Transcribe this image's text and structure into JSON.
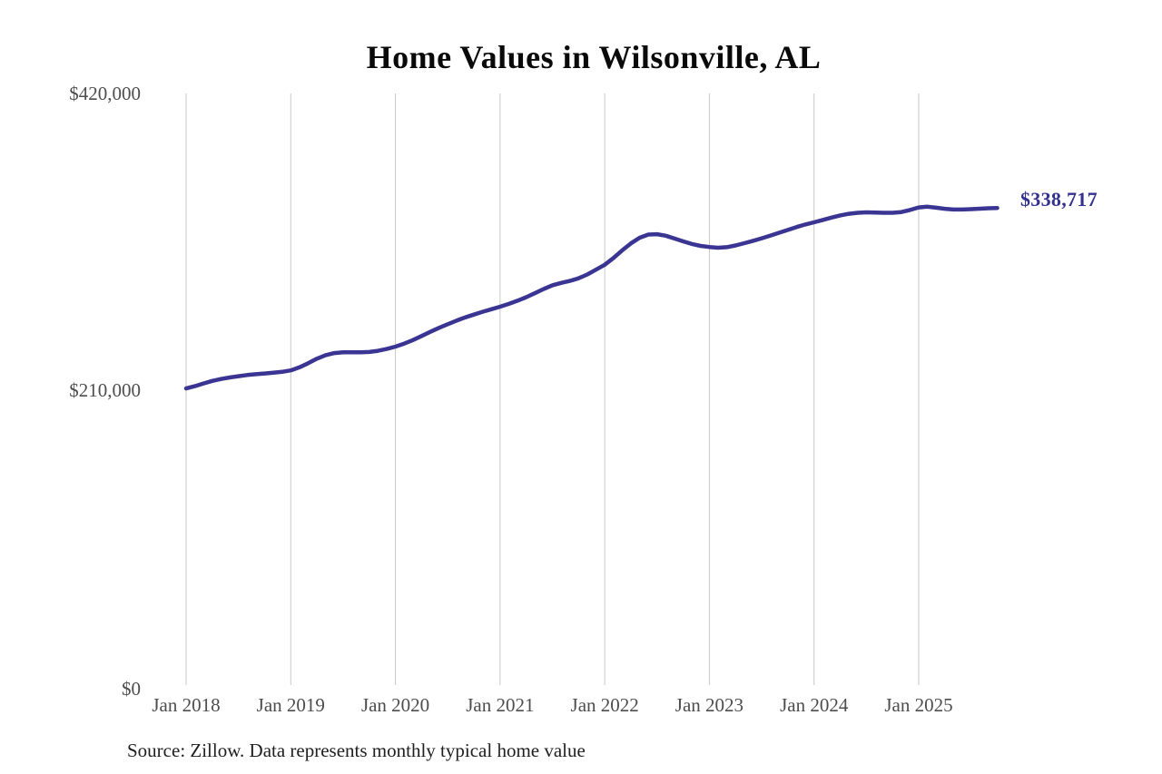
{
  "header": {
    "title": "Home Values in Wilsonville, AL"
  },
  "footer": {
    "source": "Source: Zillow. Data represents monthly typical home value"
  },
  "style": {
    "line_color": "#3a3492",
    "end_label_color": "#33318f",
    "grid_color": "#c9c9c9",
    "axis_text_color": "#4d4d4d",
    "title_color": "#0a0a0a",
    "background": "#ffffff"
  },
  "chart_data": {
    "type": "line",
    "title": "Home Values in Wilsonville, AL",
    "series_name": "Typical home value",
    "unit": "USD",
    "frequency": "monthly",
    "x_start": "Jan 2018",
    "x_end": "Oct 2025",
    "ylim": [
      0,
      420000
    ],
    "grid": "vertical-only",
    "legend": "none",
    "x_tick_labels": [
      "Jan 2018",
      "Jan 2019",
      "Jan 2020",
      "Jan 2021",
      "Jan 2022",
      "Jan 2023",
      "Jan 2024",
      "Jan 2025"
    ],
    "y_tick_labels": [
      "$420,000",
      "$210,000",
      "$0"
    ],
    "y_tick_values": [
      420000,
      210000,
      0
    ],
    "end_value": 338717,
    "end_value_label": "$338,717",
    "values": [
      210600,
      212200,
      214100,
      215900,
      217300,
      218400,
      219300,
      220100,
      220700,
      221200,
      221700,
      222400,
      223400,
      225600,
      228500,
      231700,
      234200,
      235700,
      236300,
      236300,
      236200,
      236500,
      237300,
      238600,
      240300,
      242400,
      244900,
      247800,
      250800,
      253600,
      256200,
      258700,
      261000,
      263000,
      265000,
      266800,
      268600,
      270600,
      272900,
      275400,
      278200,
      281200,
      283800,
      285500,
      286900,
      288800,
      291500,
      294900,
      298400,
      303200,
      308600,
      313600,
      317600,
      319800,
      320100,
      319000,
      317000,
      315000,
      313100,
      311800,
      311000,
      310500,
      310900,
      312100,
      313700,
      315400,
      317200,
      319100,
      321100,
      323100,
      325200,
      327000,
      328500,
      330200,
      331900,
      333400,
      334600,
      335300,
      335600,
      335500,
      335300,
      335300,
      335800,
      337300,
      339100,
      339600,
      338900,
      338100,
      337600,
      337600,
      337900,
      338200,
      338500,
      338717
    ]
  }
}
